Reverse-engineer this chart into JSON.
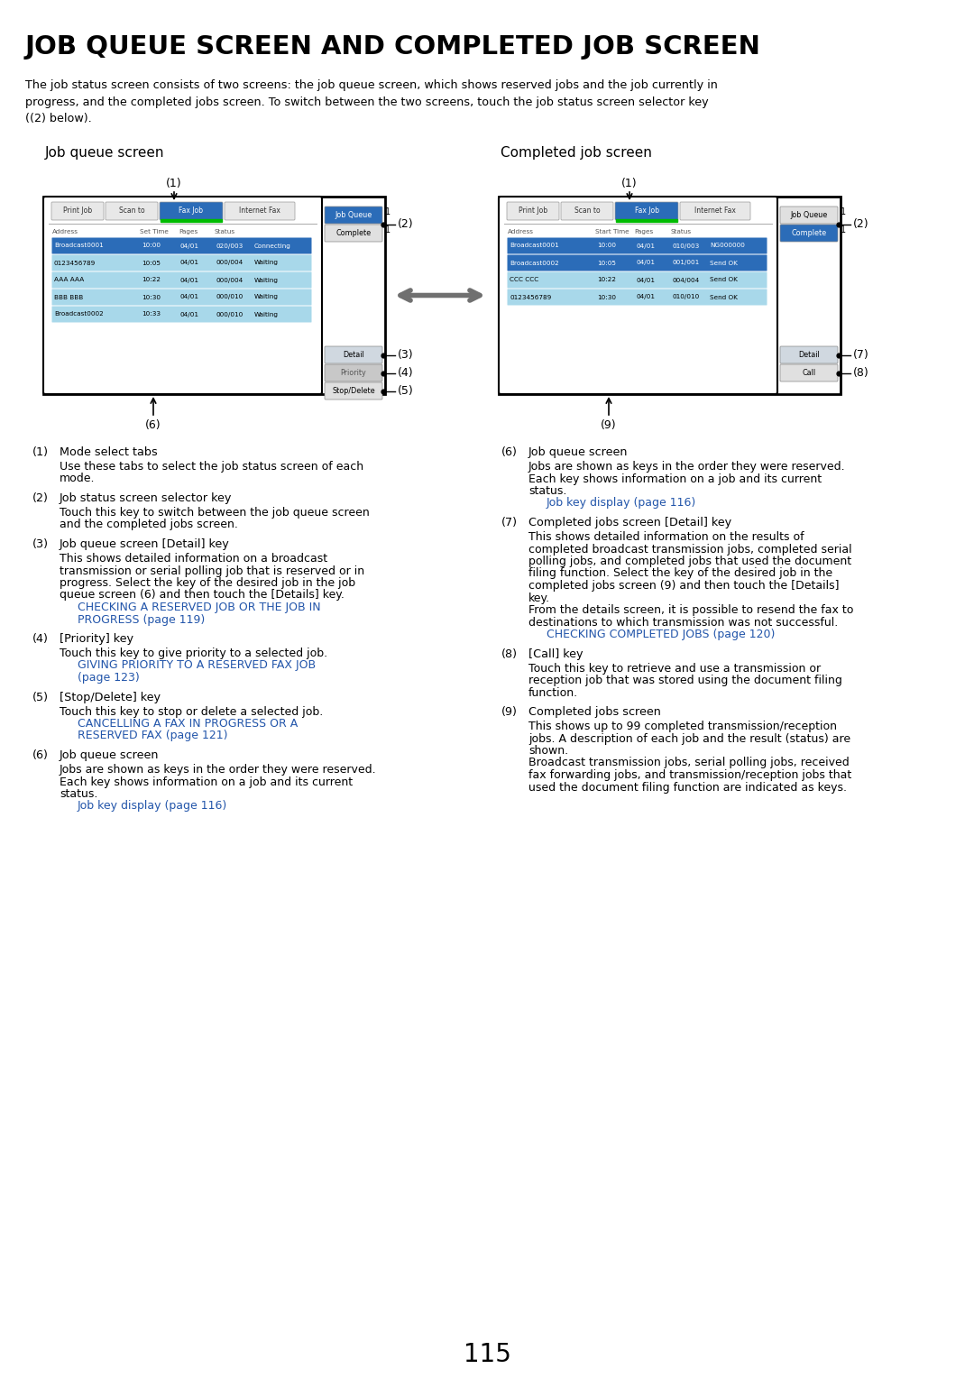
{
  "title": "JOB QUEUE SCREEN AND COMPLETED JOB SCREEN",
  "intro_text": "The job status screen consists of two screens: the job queue screen, which shows reserved jobs and the job currently in\nprogress, and the completed jobs screen. To switch between the two screens, touch the job status screen selector key\n((2) below).",
  "left_screen_label": "Job queue screen",
  "right_screen_label": "Completed job screen",
  "tab_labels": [
    "Print Job",
    "Scan to",
    "Fax Job",
    "Internet Fax"
  ],
  "left_header_cols": [
    "Address",
    "Set Time",
    "Pages",
    "Status"
  ],
  "right_header_cols": [
    "Address",
    "Start Time",
    "Pages",
    "Status"
  ],
  "left_rows": [
    [
      "Broadcast0001",
      "10:00",
      "04/01",
      "020/003",
      "Connecting",
      true
    ],
    [
      "0123456789",
      "10:05",
      "04/01",
      "000/004",
      "Waiting",
      false
    ],
    [
      "AAA AAA",
      "10:22",
      "04/01",
      "000/004",
      "Waiting",
      false
    ],
    [
      "BBB BBB",
      "10:30",
      "04/01",
      "000/010",
      "Waiting",
      false
    ],
    [
      "Broadcast0002",
      "10:33",
      "04/01",
      "000/010",
      "Waiting",
      false
    ]
  ],
  "right_rows": [
    [
      "Broadcast0001",
      "10:00",
      "04/01",
      "010/003",
      "NG000000",
      true
    ],
    [
      "Broadcast0002",
      "10:05",
      "04/01",
      "001/001",
      "Send OK",
      true
    ],
    [
      "CCC CCC",
      "10:22",
      "04/01",
      "004/004",
      "Send OK",
      false
    ],
    [
      "0123456789",
      "10:30",
      "04/01",
      "010/010",
      "Send OK",
      false
    ]
  ],
  "page_number": "115",
  "items_left": [
    {
      "num": "(1)",
      "title": "Mode select tabs",
      "body": "Use these tabs to select the job status screen of each\nmode.",
      "link": null
    },
    {
      "num": "(2)",
      "title": "Job status screen selector key",
      "body": "Touch this key to switch between the job queue screen\nand the completed jobs screen.",
      "link": null
    },
    {
      "num": "(3)",
      "title": "Job queue screen [Detail] key",
      "body": "This shows detailed information on a broadcast\ntransmission or serial polling job that is reserved or in\nprogress. Select the key of the desired job in the job\nqueue screen (6) and then touch the [Details] key.",
      "link": "CHECKING A RESERVED JOB OR THE JOB IN\nPROGRESS (page 119)"
    },
    {
      "num": "(4)",
      "title": "[Priority] key",
      "body": "Touch this key to give priority to a selected job.",
      "link": "GIVING PRIORITY TO A RESERVED FAX JOB\n(page 123)"
    },
    {
      "num": "(5)",
      "title": "[Stop/Delete] key",
      "body": "Touch this key to stop or delete a selected job.",
      "link": "CANCELLING A FAX IN PROGRESS OR A\nRESERVED FAX (page 121)"
    },
    {
      "num": "(6)",
      "title": "Job queue screen",
      "body": "Jobs are shown as keys in the order they were reserved.\nEach key shows information on a job and its current\nstatus.",
      "link": "Job key display (page 116)"
    }
  ],
  "items_right": [
    {
      "num": "(6)",
      "title": "Job queue screen",
      "body": "Jobs are shown as keys in the order they were reserved.\nEach key shows information on a job and its current\nstatus.",
      "link": "Job key display (page 116)"
    },
    {
      "num": "(7)",
      "title": "Completed jobs screen [Detail] key",
      "body": "This shows detailed information on the results of\ncompleted broadcast transmission jobs, completed serial\npolling jobs, and completed jobs that used the document\nfiling function. Select the key of the desired job in the\ncompleted jobs screen (9) and then touch the [Details]\nkey.\nFrom the details screen, it is possible to resend the fax to\ndestinations to which transmission was not successful.",
      "link": "CHECKING COMPLETED JOBS (page 120)"
    },
    {
      "num": "(8)",
      "title": "[Call] key",
      "body": "Touch this key to retrieve and use a transmission or\nreception job that was stored using the document filing\nfunction.",
      "link": null
    },
    {
      "num": "(9)",
      "title": "Completed jobs screen",
      "body": "This shows up to 99 completed transmission/reception\njobs. A description of each job and the result (status) are\nshown.\nBroadcast transmission jobs, serial polling jobs, received\nfax forwarding jobs, and transmission/reception jobs that\nused the document filing function are indicated as keys.",
      "link": null
    }
  ],
  "colors": {
    "active_row_bg": "#2b6cb8",
    "inactive_row_bg": "#a8d8ea",
    "active_row_text": "#ffffff",
    "inactive_row_text": "#000000",
    "tab_active_bg": "#2b6cb8",
    "tab_inactive_bg": "#e8e8e8",
    "active_tab_text": "#ffffff",
    "inactive_tab_text": "#333333",
    "button_blue_bg": "#2b6cb8",
    "button_gray_bg": "#c8c8c8",
    "button_detail_bg": "#d0d8e0",
    "link_color": "#2255aa",
    "green_bar": "#00bb00",
    "arrow_color": "#707070"
  }
}
